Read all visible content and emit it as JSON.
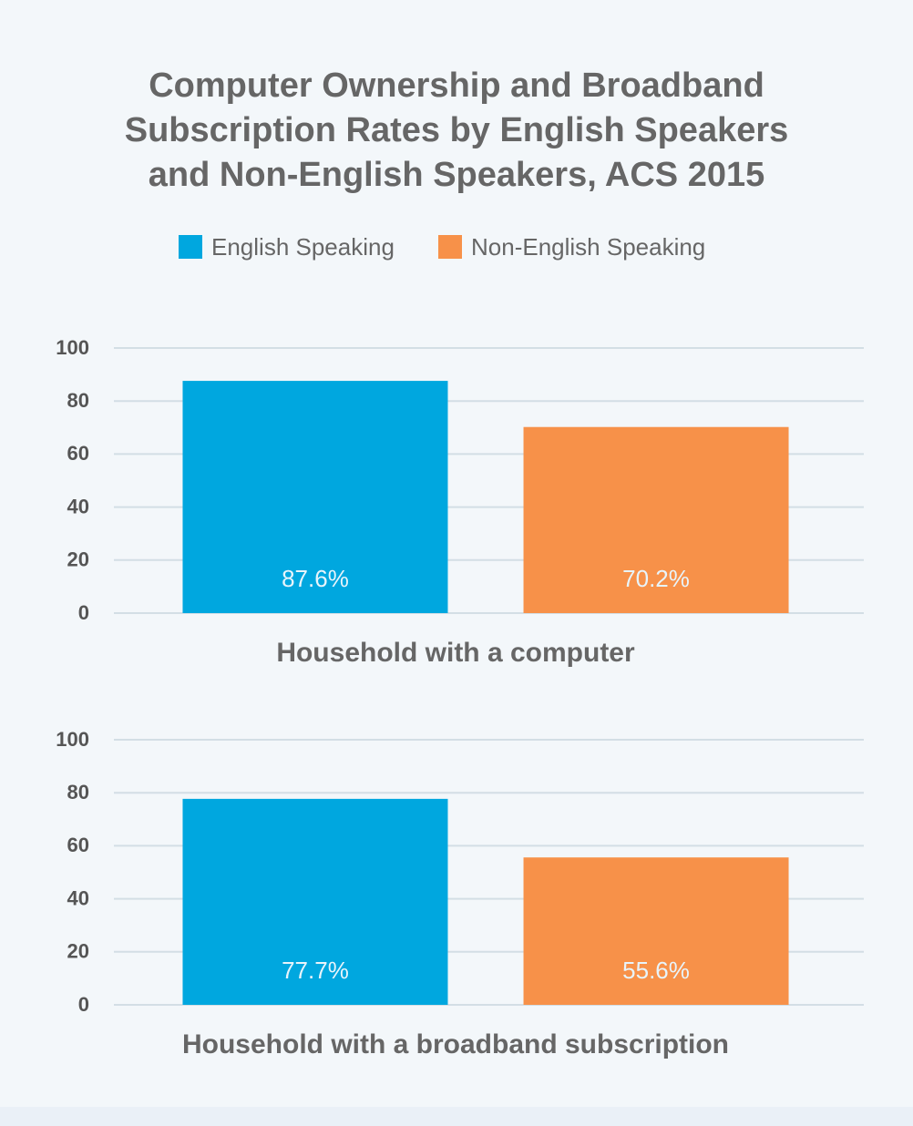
{
  "title": "Computer Ownership and Broadband Subscription Rates by English Speakers and Non-English Speakers, ACS 2015",
  "chart_data": [
    {
      "type": "bar",
      "xlabel": "Household with a computer",
      "series": [
        {
          "name": "English Speaking",
          "color": "#00a7df",
          "values": [
            87.6
          ],
          "value_labels": [
            "87.6%"
          ]
        },
        {
          "name": "Non-English Speaking",
          "color": "#f79149",
          "values": [
            70.2
          ],
          "value_labels": [
            "70.2%"
          ]
        }
      ],
      "ylim": [
        0,
        100
      ],
      "yticks": [
        0,
        20,
        40,
        60,
        80,
        100
      ],
      "grid": true
    },
    {
      "type": "bar",
      "xlabel": "Household with a broadband subscription",
      "series": [
        {
          "name": "English Speaking",
          "color": "#00a7df",
          "values": [
            77.7
          ],
          "value_labels": [
            "77.7%"
          ]
        },
        {
          "name": "Non-English Speaking",
          "color": "#f79149",
          "values": [
            55.6
          ],
          "value_labels": [
            "55.6%"
          ]
        }
      ],
      "ylim": [
        0,
        100
      ],
      "yticks": [
        0,
        20,
        40,
        60,
        80,
        100
      ],
      "grid": true
    }
  ]
}
